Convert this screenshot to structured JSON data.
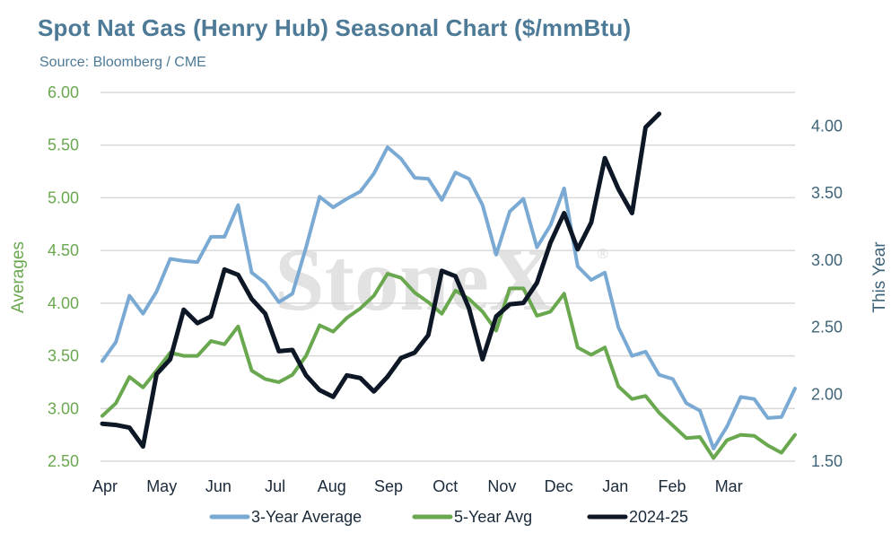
{
  "title": "Spot Nat Gas (Henry Hub) Seasonal Chart ($/mmBtu)",
  "source": "Source: Bloomberg / CME",
  "watermark": "StoneX",
  "watermark_reg": "®",
  "chart_data": {
    "type": "line",
    "y_left_label": "Averages",
    "y_right_label": "This Year",
    "y_left_lim": [
      2.5,
      6.0
    ],
    "y_right_lim": [
      1.5,
      4.25
    ],
    "y_left_ticks": [
      "2.50",
      "3.00",
      "3.50",
      "4.00",
      "4.50",
      "5.00",
      "5.50",
      "6.00"
    ],
    "y_right_ticks": [
      "1.50",
      "2.00",
      "2.50",
      "3.00",
      "3.50",
      "4.00"
    ],
    "x_ticks": [
      "Apr",
      "May",
      "Jun",
      "Jul",
      "Aug",
      "Sep",
      "Oct",
      "Nov",
      "Dec",
      "Jan",
      "Feb",
      "Mar"
    ],
    "grid": true,
    "legend_position": "bottom",
    "series": [
      {
        "name": "3-Year Average",
        "axis": "left",
        "color": "#7aaad3",
        "values": [
          3.45,
          3.63,
          4.07,
          3.9,
          4.11,
          4.42,
          4.4,
          4.39,
          4.63,
          4.63,
          4.93,
          4.29,
          4.19,
          4.01,
          4.09,
          4.53,
          5.01,
          4.91,
          4.99,
          5.06,
          5.23,
          5.48,
          5.37,
          5.19,
          5.18,
          4.98,
          5.24,
          5.18,
          4.93,
          4.46,
          4.87,
          4.99,
          4.53,
          4.74,
          5.09,
          4.35,
          4.22,
          4.29,
          3.77,
          3.5,
          3.54,
          3.32,
          3.28,
          3.05,
          2.98,
          2.62,
          2.83,
          3.11,
          3.09,
          2.91,
          2.92,
          3.19
        ]
      },
      {
        "name": "5-Year Avg",
        "axis": "left",
        "color": "#6aa84f",
        "values": [
          2.93,
          3.05,
          3.3,
          3.2,
          3.36,
          3.53,
          3.5,
          3.5,
          3.64,
          3.61,
          3.78,
          3.36,
          3.28,
          3.25,
          3.32,
          3.5,
          3.79,
          3.73,
          3.86,
          3.95,
          4.07,
          4.28,
          4.24,
          4.1,
          4.01,
          3.9,
          4.12,
          4.04,
          3.92,
          3.74,
          4.14,
          4.14,
          3.88,
          3.92,
          4.09,
          3.58,
          3.51,
          3.58,
          3.21,
          3.09,
          3.12,
          2.96,
          2.84,
          2.72,
          2.73,
          2.53,
          2.7,
          2.75,
          2.74,
          2.65,
          2.58,
          2.75
        ]
      },
      {
        "name": "2024-25",
        "axis": "right",
        "color": "#0d1726",
        "values": [
          1.78,
          1.77,
          1.75,
          1.61,
          2.15,
          2.26,
          2.63,
          2.53,
          2.58,
          2.93,
          2.89,
          2.71,
          2.6,
          2.32,
          2.33,
          2.14,
          2.03,
          1.98,
          2.14,
          2.12,
          2.02,
          2.13,
          2.27,
          2.31,
          2.44,
          2.92,
          2.88,
          2.64,
          2.26,
          2.58,
          2.67,
          2.68,
          2.83,
          3.13,
          3.35,
          3.08,
          3.28,
          3.76,
          3.53,
          3.35,
          3.99,
          4.09
        ]
      }
    ]
  }
}
